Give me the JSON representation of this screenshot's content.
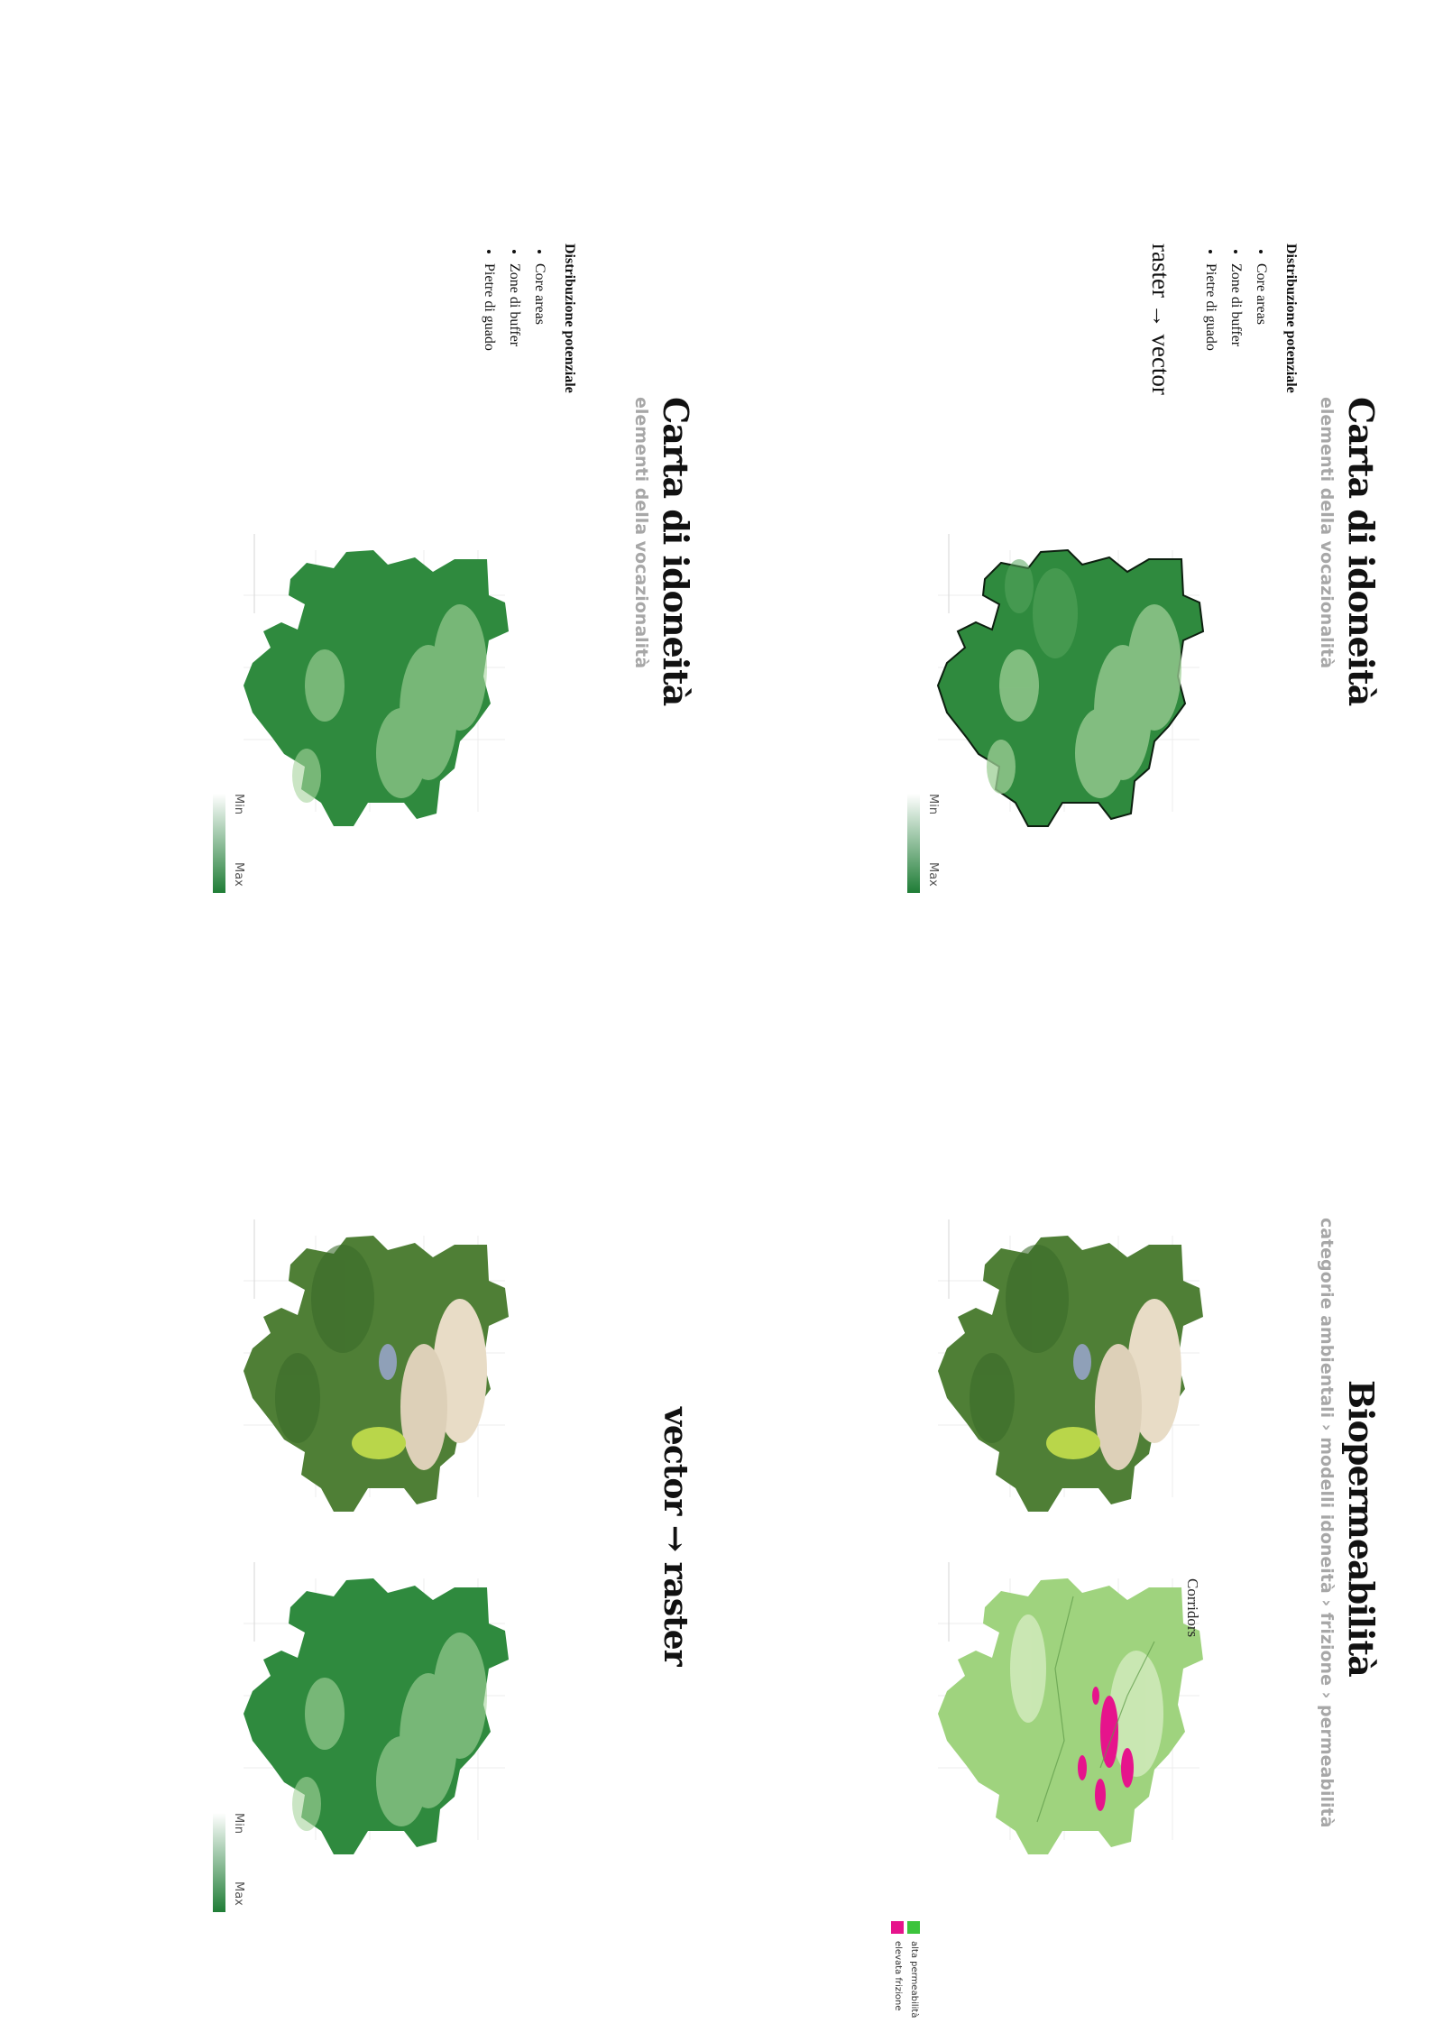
{
  "panels": {
    "top_left": {
      "title": "Carta di idoneità",
      "subtitle": "elementi della vocazionalità",
      "list_heading": "Distribuzione potenziale",
      "list_items": [
        "Core areas",
        "Zone di buffer",
        "Pietre di guado"
      ],
      "flow_label": "raster → vector",
      "legend": {
        "max": "Max",
        "min": "Min"
      }
    },
    "top_right": {
      "title": "Biopermeabilità",
      "subtitle": "categorie ambientali › modelli idoneità › frizione › permeabilità",
      "corridors_label": "Corridors",
      "categories": [
        "alta permeabilità",
        "elevata frizione"
      ]
    },
    "bottom_left": {
      "title": "Carta di idoneità",
      "subtitle": "elementi della vocazionalità",
      "list_heading": "Distribuzione potenziale",
      "list_items": [
        "Core areas",
        "Zone di buffer",
        "Pietre di guado"
      ],
      "legend": {
        "max": "Max",
        "min": "Min"
      }
    },
    "bottom_right": {
      "flow_label": "vector → raster",
      "legend": {
        "max": "Max",
        "min": "Min"
      }
    }
  },
  "colors": {
    "suitability_max": "#1f7d36",
    "suitability_min": "#ffffff",
    "high_permeability": "#3cc43c",
    "high_friction": "#e6148c",
    "subtitle_gray": "#a7a7a7"
  }
}
